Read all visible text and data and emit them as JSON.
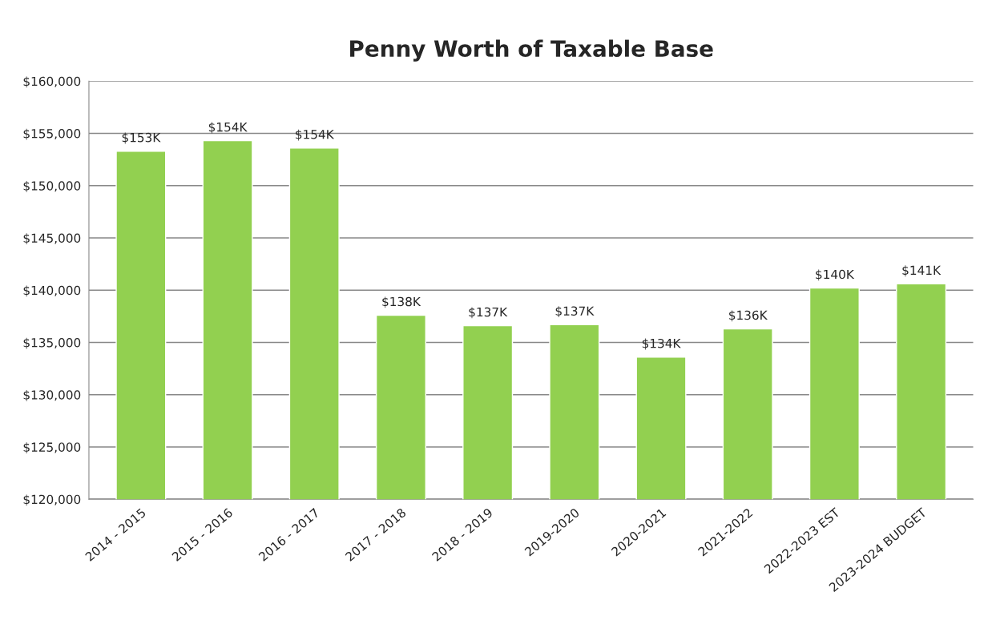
{
  "chart_data": {
    "type": "bar",
    "title": "Penny Worth of Taxable Base",
    "categories": [
      "2014 - 2015",
      "2015 - 2016",
      "2016 - 2017",
      "2017 - 2018",
      "2018 - 2019",
      "2019-2020",
      "2020-2021",
      "2021-2022",
      "2022-2023 EST",
      "2023-2024 BUDGET"
    ],
    "values": [
      153300,
      154300,
      153600,
      137600,
      136600,
      136700,
      133600,
      136300,
      140200,
      140600
    ],
    "value_labels": [
      "$153K",
      "$154K",
      "$154K",
      "$138K",
      "$137K",
      "$137K",
      "$134K",
      "$136K",
      "$140K",
      "$141K"
    ],
    "color": "#92d050",
    "ylim": [
      120000,
      160000
    ],
    "yticks": [
      {
        "value": 120000,
        "label": "$120,000"
      },
      {
        "value": 125000,
        "label": "$125,000"
      },
      {
        "value": 130000,
        "label": "$130,000"
      },
      {
        "value": 135000,
        "label": "$135,000"
      },
      {
        "value": 140000,
        "label": "$140,000"
      },
      {
        "value": 145000,
        "label": "$145,000"
      },
      {
        "value": 150000,
        "label": "$150,000"
      },
      {
        "value": 155000,
        "label": "$155,000"
      },
      {
        "value": 160000,
        "label": "$160,000"
      }
    ],
    "grid": "y"
  }
}
